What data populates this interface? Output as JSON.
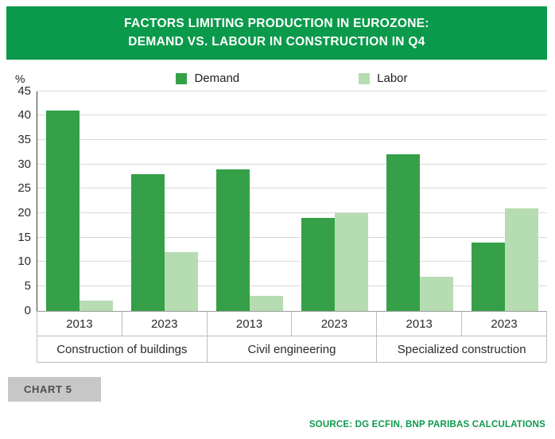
{
  "header": {
    "title_line1": "FACTORS LIMITING PRODUCTION IN EUROZONE:",
    "title_line2": "DEMAND VS. LABOUR IN CONSTRUCTION IN Q4"
  },
  "chart_data": {
    "type": "bar",
    "title": "Factors limiting production in Eurozone: demand vs. labour in construction in Q4",
    "ylabel": "%",
    "xlabel": "",
    "ylim": [
      0,
      45
    ],
    "ytick_step": 5,
    "grid": true,
    "legend_position": "top-center",
    "categories": [
      "2013",
      "2023",
      "2013",
      "2023",
      "2013",
      "2023"
    ],
    "group_labels": [
      "Construction of buildings",
      "Civil engineering",
      "Specialized construction"
    ],
    "series": [
      {
        "name": "Demand",
        "color": "#35a048",
        "values": [
          41,
          28,
          29,
          19,
          32,
          14
        ]
      },
      {
        "name": "Labor",
        "color": "#b6dcb1",
        "values": [
          2,
          12,
          3,
          20,
          7,
          21
        ]
      }
    ]
  },
  "footer": {
    "chart_label": "CHART 5",
    "source": "SOURCE: DG ECFIN, BNP PARIBAS CALCULATIONS"
  },
  "colors": {
    "header_bg": "#0b9a4c",
    "source_text": "#0b9a4c",
    "badge_bg": "#c7c7c7",
    "badge_text": "#4f4f4f"
  }
}
